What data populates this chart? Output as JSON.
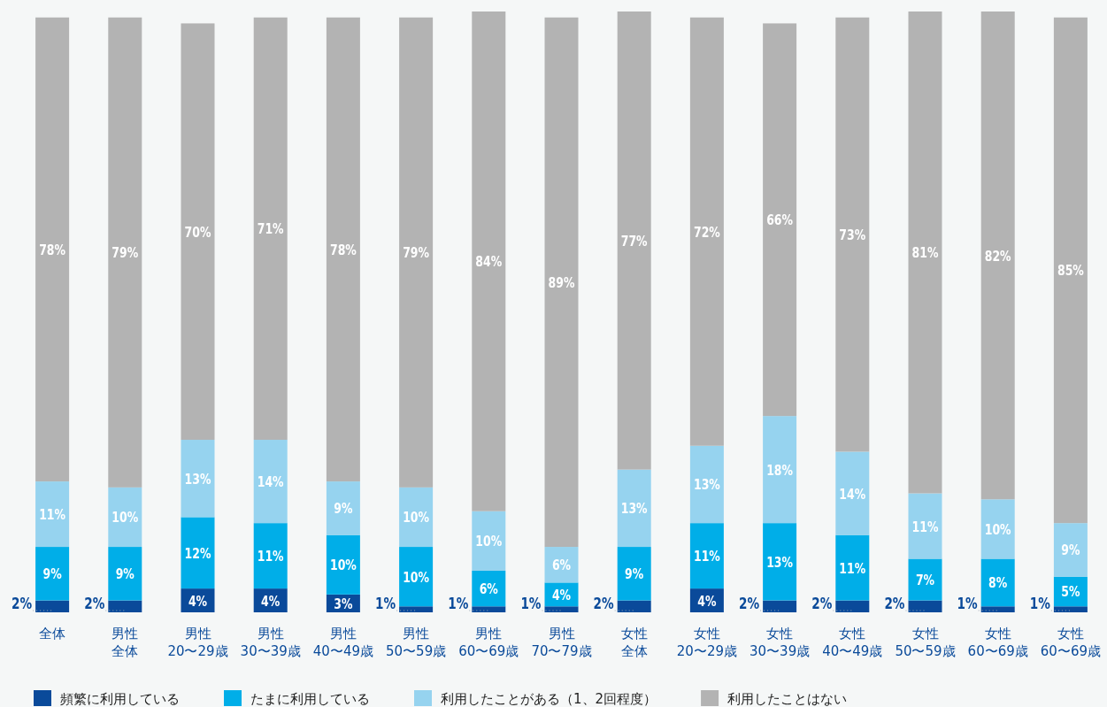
{
  "chart_data": {
    "type": "bar",
    "stacked": true,
    "legend": "bottom",
    "categories": [
      "全体",
      "男性全体",
      "男性20〜29歳",
      "男性30〜39歳",
      "男性40〜49歳",
      "男性50〜59歳",
      "男性60〜69歳",
      "男性70〜79歳",
      "女性全体",
      "女性20〜29歳",
      "女性30〜39歳",
      "女性40〜49歳",
      "女性50〜59歳",
      "女性60〜69歳",
      "女性60〜69歳"
    ],
    "series": [
      {
        "name": "頻繁に利用している",
        "color": "#0a4a9a",
        "values": [
          2,
          2,
          4,
          4,
          3,
          1,
          1,
          1,
          2,
          4,
          2,
          2,
          2,
          1,
          1
        ],
        "value_labels": [
          "2%",
          "2%",
          "4%",
          "4%",
          "3%",
          "1%",
          "1%",
          "1%",
          "2%",
          "4%",
          "2%",
          "2%",
          "2%",
          "1%",
          "1%"
        ]
      },
      {
        "name": "たまに利用している",
        "color": "#00aee8",
        "values": [
          9,
          9,
          12,
          11,
          10,
          10,
          6,
          4,
          9,
          11,
          13,
          11,
          7,
          8,
          5
        ],
        "value_labels": [
          "9%",
          "9%",
          "12%",
          "11%",
          "10%",
          "10%",
          "6%",
          "4%",
          "9%",
          "11%",
          "13%",
          "11%",
          "7%",
          "8%",
          "5%"
        ]
      },
      {
        "name": "利用したことがある（1、2回程度）",
        "color": "#96d3ef",
        "values": [
          11,
          10,
          13,
          14,
          9,
          10,
          10,
          6,
          13,
          13,
          18,
          14,
          11,
          10,
          9
        ],
        "value_labels": [
          "11%",
          "10%",
          "13%",
          "14%",
          "9%",
          "10%",
          "10%",
          "6%",
          "13%",
          "13%",
          "18%",
          "14%",
          "11%",
          "10%",
          "9%"
        ]
      },
      {
        "name": "利用したことはない",
        "color": "#b3b3b3",
        "values": [
          78,
          79,
          70,
          71,
          78,
          79,
          84,
          89,
          77,
          72,
          66,
          73,
          81,
          82,
          85
        ],
        "value_labels": [
          "78%",
          "79%",
          "70%",
          "71%",
          "78%",
          "79%",
          "84%",
          "89%",
          "77%",
          "72%",
          "66%",
          "73%",
          "81%",
          "82%",
          "85%"
        ]
      }
    ]
  }
}
